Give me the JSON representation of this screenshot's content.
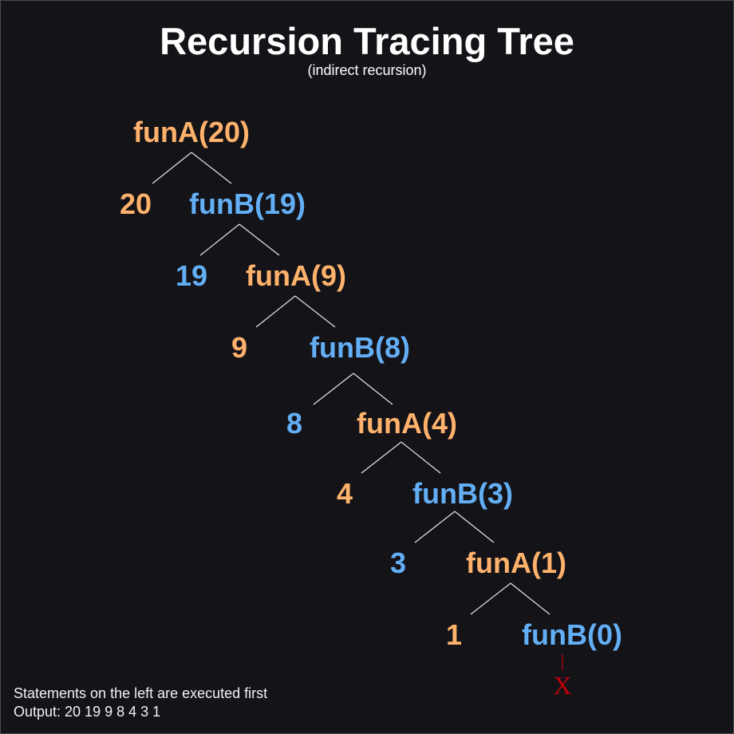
{
  "title": "Recursion Tracing Tree",
  "subtitle": "(indirect recursion)",
  "colors": {
    "background": "#141318",
    "funA": "#ffb26b",
    "funB": "#63aff5",
    "edge": "#e6e6e6",
    "terminator": "#c0000c",
    "text": "#ffffff"
  },
  "levels": [
    {
      "call": "funA(20)",
      "kind": "funA",
      "print": "20"
    },
    {
      "call": "funB(19)",
      "kind": "funB",
      "print": "19"
    },
    {
      "call": "funA(9)",
      "kind": "funA",
      "print": "9"
    },
    {
      "call": "funB(8)",
      "kind": "funB",
      "print": "8"
    },
    {
      "call": "funA(4)",
      "kind": "funA",
      "print": "4"
    },
    {
      "call": "funB(3)",
      "kind": "funB",
      "print": "3"
    },
    {
      "call": "funA(1)",
      "kind": "funA",
      "print": "1"
    },
    {
      "call": "funB(0)",
      "kind": "funB",
      "print": null
    }
  ],
  "terminator": "X",
  "notes": {
    "line1": "Statements on the left are executed first",
    "line2": "Output: 20 19 9 8 4 3 1"
  }
}
